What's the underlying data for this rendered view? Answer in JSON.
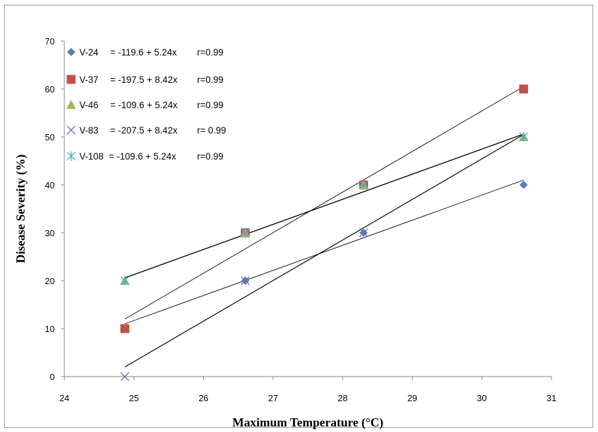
{
  "chart_data": {
    "type": "scatter",
    "title": "",
    "xlabel": "Maximum Temperature (°C)",
    "ylabel": "Disease Severity (%)",
    "xlim": [
      24,
      31
    ],
    "ylim": [
      0,
      70
    ],
    "xticks": [
      "24",
      "25",
      "26",
      "27",
      "28",
      "29",
      "30",
      "31"
    ],
    "yticks": [
      "0",
      "10",
      "20",
      "30",
      "40",
      "50",
      "60",
      "70"
    ],
    "grid": false,
    "legend_position": "top-left",
    "series": [
      {
        "name": "V-24",
        "equation": "= -119.6 + 5.24x",
        "r": "r=0.99",
        "marker": "diamond",
        "color": "#4f81bd",
        "points": [
          [
            26.6,
            20
          ],
          [
            28.3,
            30
          ],
          [
            30.6,
            40
          ]
        ],
        "trend": [
          [
            24.87,
            11
          ],
          [
            30.6,
            41
          ]
        ]
      },
      {
        "name": "V-37",
        "equation": "= -197.5 + 8.42x",
        "r": "r=0.99",
        "marker": "square",
        "color": "#c0504d",
        "points": [
          [
            24.87,
            10
          ],
          [
            26.6,
            30
          ],
          [
            28.3,
            40
          ],
          [
            30.6,
            60
          ]
        ],
        "trend": [
          [
            24.87,
            12
          ],
          [
            30.6,
            60.5
          ]
        ]
      },
      {
        "name": "V-46",
        "equation": "= -109.6 + 5.24x",
        "r": "r=0.99",
        "marker": "triangle",
        "color": "#9bbb59",
        "points": [
          [
            24.87,
            20
          ],
          [
            26.6,
            30
          ],
          [
            28.3,
            40
          ],
          [
            30.6,
            50
          ]
        ],
        "trend": [
          [
            24.87,
            20.6
          ],
          [
            30.6,
            50.6
          ]
        ]
      },
      {
        "name": "V-83",
        "equation": "= -207.5 + 8.42x",
        "r": "r= 0.99",
        "marker": "x",
        "color": "#8064a2",
        "points": [
          [
            24.87,
            0
          ],
          [
            26.6,
            20
          ],
          [
            28.3,
            30
          ],
          [
            30.6,
            50
          ]
        ],
        "trend": [
          [
            24.87,
            2
          ],
          [
            30.6,
            50.5
          ]
        ]
      },
      {
        "name": "V-108",
        "equation": "= -109.6 + 5.24x",
        "r": "r=0.99",
        "marker": "star",
        "color": "#4bacc6",
        "points": [
          [
            24.87,
            20
          ],
          [
            26.6,
            30
          ],
          [
            28.3,
            40
          ],
          [
            30.6,
            50
          ]
        ],
        "trend": [
          [
            24.87,
            20.6
          ],
          [
            30.6,
            50.6
          ]
        ]
      }
    ]
  }
}
